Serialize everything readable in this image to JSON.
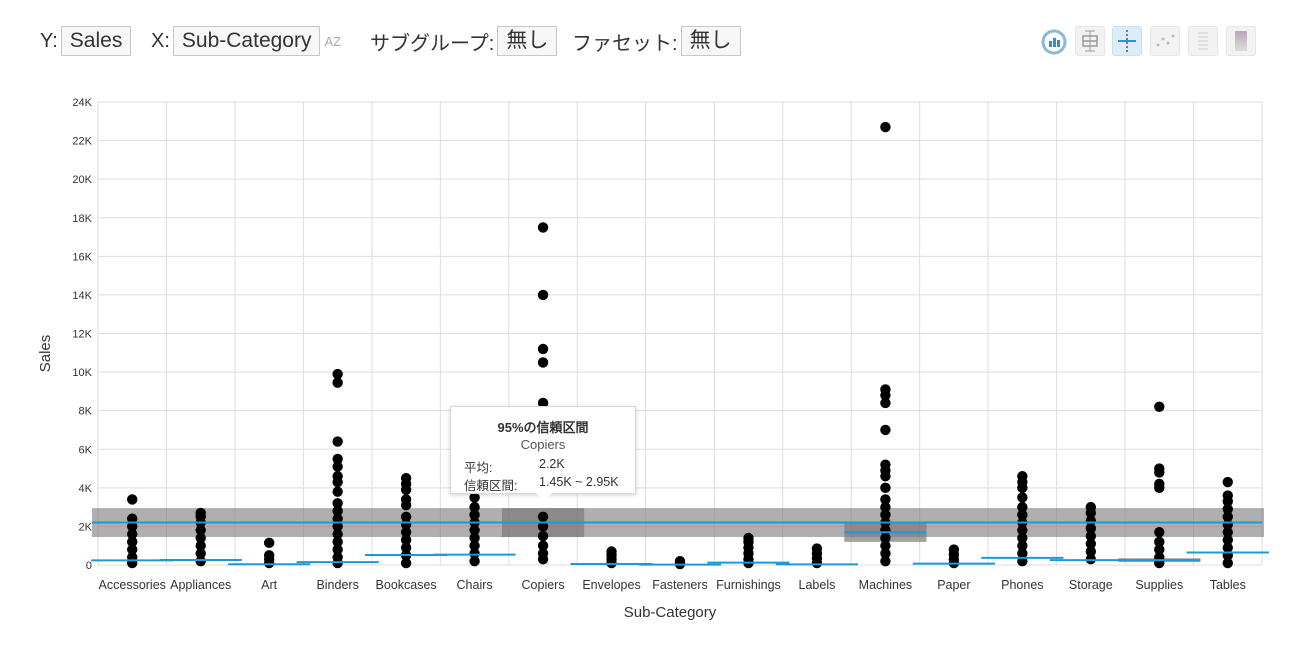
{
  "controls": {
    "y_label": "Y:",
    "y_value": "Sales",
    "x_label": "X:",
    "x_value": "Sub-Category",
    "sort_icon": "AZ",
    "subgroup_label": "サブグループ:",
    "subgroup_value": "無し",
    "facet_label": "ファセット:",
    "facet_value": "無し"
  },
  "toolbar_icons": [
    "refresh-chart-icon",
    "boxplot-icon",
    "mean-ci-icon",
    "scatter-icon",
    "stacked-icon",
    "gradient-icon"
  ],
  "colors": {
    "points": "#000000",
    "mean_line": "#1a9bd7",
    "ci_band": "#7a7a7a",
    "grid": "#dddddd"
  },
  "tooltip": {
    "title": "95%の信頼区間",
    "category": "Copiers",
    "mean_label": "平均:",
    "mean_value": "2.2K",
    "ci_label": "信頼区間:",
    "ci_value": "1.45K ~ 2.95K"
  },
  "chart_data": {
    "type": "scatter",
    "xlabel": "Sub-Category",
    "ylabel": "Sales",
    "ylim": [
      0,
      24000
    ],
    "y_ticks": [
      0,
      2000,
      4000,
      6000,
      8000,
      10000,
      12000,
      14000,
      16000,
      18000,
      20000,
      22000,
      24000
    ],
    "y_tick_labels": [
      "0",
      "2K",
      "4K",
      "6K",
      "8K",
      "10K",
      "12K",
      "14K",
      "16K",
      "18K",
      "20K",
      "22K",
      "24K"
    ],
    "grid": true,
    "categories": [
      "Accessories",
      "Appliances",
      "Art",
      "Binders",
      "Bookcases",
      "Chairs",
      "Copiers",
      "Envelopes",
      "Fasteners",
      "Furnishings",
      "Labels",
      "Machines",
      "Paper",
      "Phones",
      "Storage",
      "Supplies",
      "Tables"
    ],
    "points": [
      [
        0,
        3400
      ],
      [
        0,
        2400
      ],
      [
        0,
        2000
      ],
      [
        0,
        1600
      ],
      [
        0,
        1200
      ],
      [
        0,
        800
      ],
      [
        0,
        400
      ],
      [
        0,
        100
      ],
      [
        1,
        2700
      ],
      [
        1,
        2500
      ],
      [
        1,
        2200
      ],
      [
        1,
        1800
      ],
      [
        1,
        1400
      ],
      [
        1,
        1000
      ],
      [
        1,
        600
      ],
      [
        1,
        200
      ],
      [
        2,
        1150
      ],
      [
        2,
        500
      ],
      [
        2,
        300
      ],
      [
        2,
        100
      ],
      [
        3,
        9900
      ],
      [
        3,
        9450
      ],
      [
        3,
        6400
      ],
      [
        3,
        5500
      ],
      [
        3,
        5100
      ],
      [
        3,
        4600
      ],
      [
        3,
        4300
      ],
      [
        3,
        3800
      ],
      [
        3,
        3200
      ],
      [
        3,
        2800
      ],
      [
        3,
        2400
      ],
      [
        3,
        2000
      ],
      [
        3,
        1600
      ],
      [
        3,
        1200
      ],
      [
        3,
        800
      ],
      [
        3,
        400
      ],
      [
        3,
        100
      ],
      [
        4,
        4500
      ],
      [
        4,
        4200
      ],
      [
        4,
        3900
      ],
      [
        4,
        3400
      ],
      [
        4,
        3100
      ],
      [
        4,
        2500
      ],
      [
        4,
        2100
      ],
      [
        4,
        1700
      ],
      [
        4,
        1300
      ],
      [
        4,
        900
      ],
      [
        4,
        500
      ],
      [
        4,
        100
      ],
      [
        5,
        4500
      ],
      [
        5,
        3500
      ],
      [
        5,
        3000
      ],
      [
        5,
        2600
      ],
      [
        5,
        2200
      ],
      [
        5,
        1800
      ],
      [
        5,
        1400
      ],
      [
        5,
        1000
      ],
      [
        5,
        600
      ],
      [
        5,
        200
      ],
      [
        6,
        17500
      ],
      [
        6,
        14000
      ],
      [
        6,
        11200
      ],
      [
        6,
        10500
      ],
      [
        6,
        8400
      ],
      [
        6,
        2500
      ],
      [
        6,
        2000
      ],
      [
        6,
        1500
      ],
      [
        6,
        1000
      ],
      [
        6,
        600
      ],
      [
        6,
        300
      ],
      [
        7,
        700
      ],
      [
        7,
        500
      ],
      [
        7,
        300
      ],
      [
        7,
        100
      ],
      [
        8,
        200
      ],
      [
        8,
        100
      ],
      [
        8,
        50
      ],
      [
        9,
        1400
      ],
      [
        9,
        1200
      ],
      [
        9,
        900
      ],
      [
        9,
        600
      ],
      [
        9,
        300
      ],
      [
        9,
        100
      ],
      [
        10,
        850
      ],
      [
        10,
        600
      ],
      [
        10,
        350
      ],
      [
        10,
        100
      ],
      [
        11,
        22700
      ],
      [
        11,
        9100
      ],
      [
        11,
        8800
      ],
      [
        11,
        8400
      ],
      [
        11,
        7000
      ],
      [
        11,
        5200
      ],
      [
        11,
        4900
      ],
      [
        11,
        4600
      ],
      [
        11,
        4000
      ],
      [
        11,
        3400
      ],
      [
        11,
        3000
      ],
      [
        11,
        2600
      ],
      [
        11,
        2200
      ],
      [
        11,
        1800
      ],
      [
        11,
        1400
      ],
      [
        11,
        1000
      ],
      [
        11,
        600
      ],
      [
        11,
        200
      ],
      [
        12,
        800
      ],
      [
        12,
        550
      ],
      [
        12,
        300
      ],
      [
        12,
        100
      ],
      [
        13,
        4600
      ],
      [
        13,
        4300
      ],
      [
        13,
        4000
      ],
      [
        13,
        3500
      ],
      [
        13,
        3000
      ],
      [
        13,
        2600
      ],
      [
        13,
        2200
      ],
      [
        13,
        1800
      ],
      [
        13,
        1400
      ],
      [
        13,
        1000
      ],
      [
        13,
        600
      ],
      [
        13,
        200
      ],
      [
        14,
        3000
      ],
      [
        14,
        2700
      ],
      [
        14,
        2300
      ],
      [
        14,
        1900
      ],
      [
        14,
        1500
      ],
      [
        14,
        1100
      ],
      [
        14,
        700
      ],
      [
        14,
        300
      ],
      [
        15,
        8200
      ],
      [
        15,
        5000
      ],
      [
        15,
        4800
      ],
      [
        15,
        4200
      ],
      [
        15,
        4000
      ],
      [
        15,
        1700
      ],
      [
        15,
        1200
      ],
      [
        15,
        800
      ],
      [
        15,
        400
      ],
      [
        15,
        100
      ],
      [
        16,
        4300
      ],
      [
        16,
        3600
      ],
      [
        16,
        3300
      ],
      [
        16,
        2900
      ],
      [
        16,
        2500
      ],
      [
        16,
        2100
      ],
      [
        16,
        1700
      ],
      [
        16,
        1300
      ],
      [
        16,
        900
      ],
      [
        16,
        500
      ],
      [
        16,
        100
      ]
    ],
    "overall_mean": 2200,
    "overall_ci": [
      1450,
      2950
    ],
    "category_means": [
      {
        "category": "Accessories",
        "mean": 240
      },
      {
        "category": "Appliances",
        "mean": 260
      },
      {
        "category": "Art",
        "mean": 40
      },
      {
        "category": "Binders",
        "mean": 150
      },
      {
        "category": "Bookcases",
        "mean": 520
      },
      {
        "category": "Chairs",
        "mean": 540
      },
      {
        "category": "Copiers",
        "mean": 2200,
        "ci": [
          1450,
          2950
        ]
      },
      {
        "category": "Envelopes",
        "mean": 50
      },
      {
        "category": "Fasteners",
        "mean": 20
      },
      {
        "category": "Furnishings",
        "mean": 120
      },
      {
        "category": "Labels",
        "mean": 30
      },
      {
        "category": "Machines",
        "mean": 1700,
        "ci": [
          1200,
          2200
        ]
      },
      {
        "category": "Paper",
        "mean": 70
      },
      {
        "category": "Phones",
        "mean": 370
      },
      {
        "category": "Storage",
        "mean": 250
      },
      {
        "category": "Supplies",
        "mean": 250,
        "ci": [
          150,
          350
        ]
      },
      {
        "category": "Tables",
        "mean": 650
      }
    ]
  }
}
